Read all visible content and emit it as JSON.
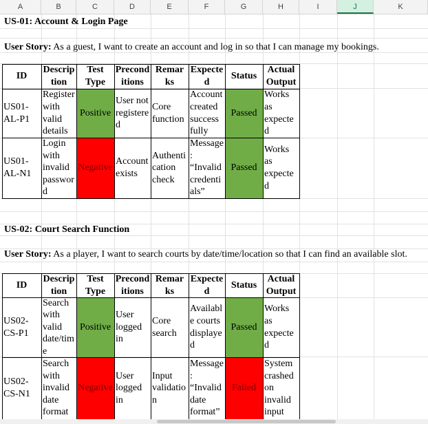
{
  "columns": [
    "A",
    "B",
    "C",
    "D",
    "E",
    "F",
    "G",
    "H",
    "I",
    "J",
    "K"
  ],
  "selected_column": "J",
  "sections": [
    {
      "title": "US-01: Account & Login Page",
      "story_label": "User Story:",
      "story_text": "As a guest, I want to create an account and log in so that I can manage my bookings.",
      "headers": {
        "id": "ID",
        "description": [
          "Descrip",
          "tion"
        ],
        "test_type": [
          "Test",
          "Type"
        ],
        "preconditions": [
          "Precond",
          "itions"
        ],
        "remarks": [
          "Remar",
          "ks"
        ],
        "expected": [
          "Expecte",
          "d"
        ],
        "status": "Status",
        "actual": [
          "Actual",
          "Output"
        ]
      },
      "rows": [
        {
          "id": [
            "US01-",
            "AL-P1"
          ],
          "description": [
            "Register",
            "with",
            "valid",
            "details"
          ],
          "test_type": "Positive",
          "preconditions": [
            "User not",
            "registere",
            "d"
          ],
          "remarks": [
            "Core",
            "function"
          ],
          "expected": [
            "Account",
            "created",
            "success",
            "fully"
          ],
          "status": "Passed",
          "actual": [
            "Works",
            "as",
            "expecte",
            "d"
          ]
        },
        {
          "id": [
            "US01-",
            "AL-N1"
          ],
          "description": [
            "Login",
            "with",
            "invalid",
            "passwor",
            "d"
          ],
          "test_type": "Negative",
          "preconditions": [
            "Account",
            "exists"
          ],
          "remarks": [
            "Authenti",
            "cation",
            "check"
          ],
          "expected": [
            "Message",
            ":",
            "“Invalid",
            "credenti",
            "als”"
          ],
          "status": "Passed",
          "actual": [
            "Works",
            "as",
            "expecte",
            "d"
          ]
        }
      ]
    },
    {
      "title": "US-02: Court Search Function",
      "story_label": "User Story:",
      "story_text": "As a player, I want to search courts by date/time/location so that I can find an available slot.",
      "headers": {
        "id": "ID",
        "description": [
          "Descrip",
          "tion"
        ],
        "test_type": [
          "Test",
          "Type"
        ],
        "preconditions": [
          "Precond",
          "itions"
        ],
        "remarks": [
          "Remar",
          "ks"
        ],
        "expected": [
          "Expecte",
          "d"
        ],
        "status": "Status",
        "actual": [
          "Actual",
          "Output"
        ]
      },
      "rows": [
        {
          "id": [
            "US02-",
            "CS-P1"
          ],
          "description": [
            "Search",
            "with",
            "valid",
            "date/tim",
            "e"
          ],
          "test_type": "Positive",
          "preconditions": [
            "User",
            "logged",
            "in"
          ],
          "remarks": [
            "Core",
            "search"
          ],
          "expected": [
            "Availabl",
            "e courts",
            "displaye",
            "d"
          ],
          "status": "Passed",
          "actual": [
            "Works",
            "as",
            "expecte",
            "d"
          ]
        },
        {
          "id": [
            "US02-",
            "CS-N1"
          ],
          "description": [
            "Search",
            "with",
            "invalid",
            "date",
            "format"
          ],
          "test_type": "Negative",
          "preconditions": [
            "User",
            "logged",
            "in"
          ],
          "remarks": [
            "Input",
            "validatio",
            "n"
          ],
          "expected": [
            "Message",
            ":",
            "“Invalid",
            "date",
            "format”"
          ],
          "status": "Failed",
          "actual": [
            "System",
            "crashed",
            "on",
            "invalid",
            "input"
          ]
        }
      ]
    }
  ],
  "colors": {
    "positive": "#70ad47",
    "negative": "#ff0000",
    "passed": "#70ad47",
    "failed": "#ff0000",
    "selected_header": "#d3f0e0"
  }
}
